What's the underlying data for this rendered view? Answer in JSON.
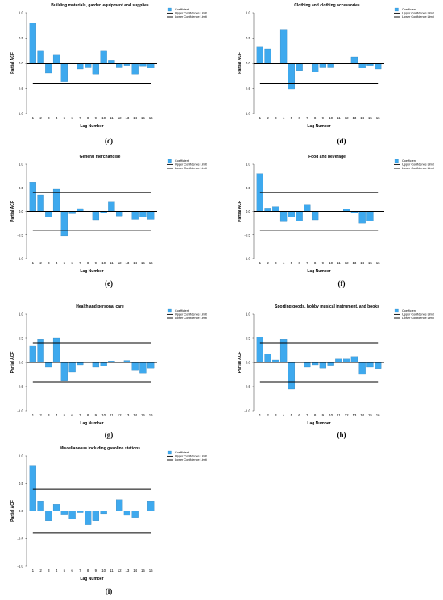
{
  "colors": {
    "bar": "#3ea9ee",
    "bar_stroke": "#1f6fa5",
    "limit_line": "#000000",
    "zero_line": "#000000"
  },
  "chart_data": [
    {
      "type": "bar",
      "panel_label": "(c)",
      "title": "Building materials, garden equipment and supplies",
      "xlabel": "Lag Number",
      "ylabel": "Partial ACF",
      "ylim": [
        -1.0,
        1.0
      ],
      "yticks": [
        "1.0",
        "0.5",
        "0.0",
        "-0.5",
        "-1.0"
      ],
      "categories": [
        "1",
        "2",
        "3",
        "4",
        "5",
        "6",
        "7",
        "8",
        "9",
        "10",
        "11",
        "12",
        "13",
        "14",
        "15",
        "16"
      ],
      "series": [
        {
          "name": "Coefficient",
          "values": [
            0.8,
            0.25,
            -0.2,
            0.17,
            -0.37,
            0.0,
            -0.12,
            -0.08,
            -0.22,
            0.25,
            0.05,
            -0.08,
            -0.05,
            -0.22,
            -0.06,
            -0.1
          ]
        }
      ],
      "upper_limit": 0.4,
      "lower_limit": -0.4,
      "legend": [
        "Coefficient",
        "Upper Confidence Limit",
        "Lower Confidence Limit"
      ]
    },
    {
      "type": "bar",
      "panel_label": "(d)",
      "title": "Clothing and clothing accessories",
      "xlabel": "Lag Number",
      "ylabel": "Partial ACF",
      "ylim": [
        -1.0,
        1.0
      ],
      "yticks": [
        "1.0",
        "0.5",
        "0.0",
        "-0.5",
        "-1.0"
      ],
      "categories": [
        "1",
        "2",
        "3",
        "4",
        "5",
        "6",
        "7",
        "8",
        "9",
        "10",
        "11",
        "12",
        "13",
        "14",
        "15",
        "16"
      ],
      "series": [
        {
          "name": "Coefficient",
          "values": [
            0.33,
            0.28,
            0.0,
            0.67,
            -0.52,
            -0.15,
            0.0,
            -0.17,
            -0.08,
            -0.08,
            0.0,
            0.0,
            0.12,
            -0.1,
            -0.05,
            -0.12
          ]
        }
      ],
      "upper_limit": 0.4,
      "lower_limit": -0.4,
      "legend": [
        "Coefficient",
        "Upper Confidence Limit",
        "Lower Confidence Limit"
      ]
    },
    {
      "type": "bar",
      "panel_label": "(e)",
      "title": "General merchandise",
      "xlabel": "Lag Number",
      "ylabel": "Partial ACF",
      "ylim": [
        -1.0,
        1.0
      ],
      "yticks": [
        "1.0",
        "0.5",
        "0.0",
        "-0.5",
        "-1.0"
      ],
      "categories": [
        "1",
        "2",
        "3",
        "4",
        "5",
        "6",
        "7",
        "8",
        "9",
        "10",
        "11",
        "12",
        "13",
        "14",
        "15",
        "16"
      ],
      "series": [
        {
          "name": "Coefficient",
          "values": [
            0.62,
            0.35,
            -0.12,
            0.47,
            -0.52,
            -0.05,
            0.06,
            0.0,
            -0.18,
            -0.04,
            0.2,
            -0.1,
            0.0,
            -0.17,
            -0.12,
            -0.17
          ]
        }
      ],
      "upper_limit": 0.4,
      "lower_limit": -0.4,
      "legend": [
        "Coefficient",
        "Upper Confidence Limit",
        "Lower Confidence Limit"
      ]
    },
    {
      "type": "bar",
      "panel_label": "(f)",
      "title": "Food and beverage",
      "xlabel": "Lag Number",
      "ylabel": "Partial ACF",
      "ylim": [
        -1.0,
        1.0
      ],
      "yticks": [
        "1.0",
        "0.5",
        "0.0",
        "-0.5",
        "-1.0"
      ],
      "categories": [
        "1",
        "2",
        "3",
        "4",
        "5",
        "6",
        "7",
        "8",
        "9",
        "10",
        "11",
        "12",
        "13",
        "14",
        "15",
        "16"
      ],
      "series": [
        {
          "name": "Coefficient",
          "values": [
            0.8,
            0.07,
            0.1,
            -0.22,
            -0.12,
            -0.2,
            0.15,
            -0.18,
            0.0,
            0.0,
            0.0,
            0.05,
            -0.04,
            -0.25,
            -0.2,
            0.0
          ]
        }
      ],
      "upper_limit": 0.4,
      "lower_limit": -0.4,
      "legend": [
        "Coefficient",
        "Upper Confidence Limit",
        "Lower Confidence Limit"
      ]
    },
    {
      "type": "bar",
      "panel_label": "(g)",
      "title": "Health and personal care",
      "xlabel": "Lag Number",
      "ylabel": "Partial ACF",
      "ylim": [
        -1.0,
        1.0
      ],
      "yticks": [
        "1.0",
        "0.5",
        "0.0",
        "-0.5",
        "-1.0"
      ],
      "categories": [
        "1",
        "2",
        "3",
        "4",
        "5",
        "6",
        "7",
        "8",
        "9",
        "10",
        "11",
        "12",
        "13",
        "14",
        "15",
        "16"
      ],
      "series": [
        {
          "name": "Coefficient",
          "values": [
            0.35,
            0.48,
            -0.1,
            0.5,
            -0.38,
            -0.2,
            -0.05,
            0.0,
            -0.1,
            -0.07,
            0.03,
            0.0,
            0.04,
            -0.17,
            -0.22,
            -0.12
          ]
        }
      ],
      "upper_limit": 0.4,
      "lower_limit": -0.4,
      "legend": [
        "Coefficient",
        "Upper Confidence Limit",
        "Lower Confidence Limit"
      ]
    },
    {
      "type": "bar",
      "panel_label": "(h)",
      "title": "Sporting goods, hobby musical instrument, and books",
      "xlabel": "Lag Number",
      "ylabel": "Partial ACF",
      "ylim": [
        -1.0,
        1.0
      ],
      "yticks": [
        "1.0",
        "0.5",
        "0.0",
        "-0.5",
        "-1.0"
      ],
      "categories": [
        "1",
        "2",
        "3",
        "4",
        "5",
        "6",
        "7",
        "8",
        "9",
        "10",
        "11",
        "12",
        "13",
        "14",
        "15",
        "16"
      ],
      "series": [
        {
          "name": "Coefficient",
          "values": [
            0.52,
            0.18,
            0.05,
            0.48,
            -0.55,
            0.0,
            -0.1,
            -0.05,
            -0.12,
            -0.06,
            0.07,
            0.07,
            0.12,
            -0.25,
            -0.1,
            -0.13
          ]
        }
      ],
      "upper_limit": 0.4,
      "lower_limit": -0.4,
      "legend": [
        "Coefficient",
        "Upper Confidence Limit",
        "Lower Confidence Limit"
      ]
    },
    {
      "type": "bar",
      "panel_label": "(i)",
      "title": "Miscellaneous including gasoline stations",
      "xlabel": "Lag Number",
      "ylabel": "Partial ACF",
      "ylim": [
        -1.0,
        1.0
      ],
      "yticks": [
        "1.0",
        "0.5",
        "0.0",
        "-0.5",
        "-1.0"
      ],
      "categories": [
        "1",
        "2",
        "3",
        "4",
        "5",
        "6",
        "7",
        "8",
        "9",
        "10",
        "11",
        "12",
        "13",
        "14",
        "15",
        "16"
      ],
      "series": [
        {
          "name": "Coefficient",
          "values": [
            0.83,
            0.18,
            -0.18,
            0.12,
            -0.06,
            -0.15,
            -0.03,
            -0.25,
            -0.18,
            -0.05,
            0.0,
            0.2,
            -0.08,
            -0.12,
            0.0,
            0.18
          ]
        }
      ],
      "upper_limit": 0.4,
      "lower_limit": -0.4,
      "legend": [
        "Coefficient",
        "Upper Confidence Limit",
        "Lower Confidence Limit"
      ]
    }
  ]
}
